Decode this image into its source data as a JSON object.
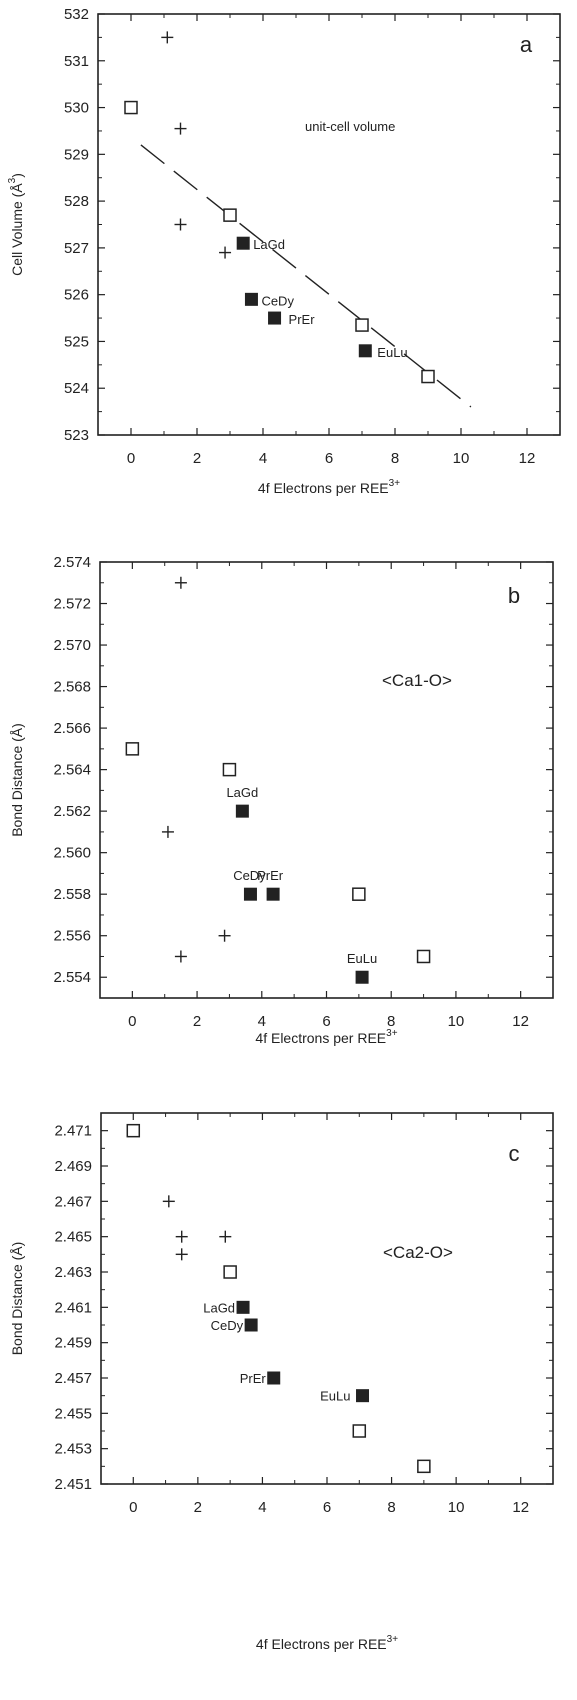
{
  "chart_data": [
    {
      "type": "scatter",
      "panel_label": "a",
      "annotation": "unit-cell volume",
      "xlabel": "4f Electrons per REE",
      "xlabel_sup": "3+",
      "ylabel": "Cell Volume (Å",
      "ylabel_sup": "3",
      "ylabel_end": ")",
      "xlim": [
        -1,
        13
      ],
      "ylim": [
        523,
        532
      ],
      "xticks": [
        0,
        2,
        4,
        6,
        8,
        10,
        12
      ],
      "yticks": [
        523,
        524,
        525,
        526,
        527,
        528,
        529,
        530,
        531,
        532
      ],
      "ytick_labels": [
        "523",
        "524",
        "525",
        "526",
        "527",
        "528",
        "529",
        "530",
        "531",
        "532"
      ],
      "series": [
        {
          "marker": "plus",
          "points": [
            [
              1.1,
              531.5
            ],
            [
              1.5,
              529.55
            ],
            [
              1.5,
              527.5
            ],
            [
              2.85,
              526.9
            ]
          ]
        },
        {
          "marker": "open-square",
          "points": [
            [
              0,
              530.0
            ],
            [
              3.0,
              527.7
            ],
            [
              7.0,
              525.35
            ],
            [
              9.0,
              524.25
            ]
          ]
        },
        {
          "marker": "filled-square",
          "points": [
            [
              3.4,
              527.1
            ],
            [
              3.65,
              525.9
            ],
            [
              4.35,
              525.5
            ],
            [
              7.1,
              524.8
            ]
          ],
          "labels": [
            "LaGd",
            "CeDy",
            "PrEr",
            "EuLu"
          ]
        }
      ],
      "trend_line": {
        "style": "dashed",
        "points": [
          [
            0.3,
            529.2
          ],
          [
            10.3,
            523.6
          ]
        ]
      }
    },
    {
      "type": "scatter",
      "panel_label": "b",
      "annotation": "<Ca1-O>",
      "xlabel": "4f Electrons per REE",
      "xlabel_sup": "3+",
      "ylabel": "Bond Distance (Å)",
      "xlim": [
        -1,
        13
      ],
      "ylim": [
        2.553,
        2.574
      ],
      "xticks": [
        0,
        2,
        4,
        6,
        8,
        10,
        12
      ],
      "yticks": [
        2.554,
        2.556,
        2.558,
        2.56,
        2.562,
        2.564,
        2.566,
        2.568,
        2.57,
        2.572,
        2.574
      ],
      "ytick_labels": [
        "2.554",
        "2.556",
        "2.558",
        "2.560",
        "2.562",
        "2.564",
        "2.566",
        "2.568",
        "2.570",
        "2.572",
        "2.574"
      ],
      "series": [
        {
          "marker": "plus",
          "points": [
            [
              1.5,
              2.573
            ],
            [
              1.1,
              2.561
            ],
            [
              1.5,
              2.555
            ],
            [
              2.85,
              2.556
            ]
          ]
        },
        {
          "marker": "open-square",
          "points": [
            [
              0,
              2.565
            ],
            [
              3.0,
              2.564
            ],
            [
              7.0,
              2.558
            ],
            [
              9.0,
              2.555
            ]
          ]
        },
        {
          "marker": "filled-square",
          "points": [
            [
              3.4,
              2.562
            ],
            [
              3.65,
              2.558
            ],
            [
              4.35,
              2.558
            ],
            [
              7.1,
              2.554
            ]
          ],
          "labels": [
            "LaGd",
            "CeDy",
            "PrEr",
            "EuLu"
          ]
        }
      ]
    },
    {
      "type": "scatter",
      "panel_label": "c",
      "annotation": "<Ca2-O>",
      "xlabel": "4f Electrons per REE",
      "xlabel_sup": "3+",
      "ylabel": "Bond Distance (Å)",
      "xlim": [
        -1,
        13
      ],
      "ylim": [
        2.451,
        2.472
      ],
      "xticks": [
        0,
        2,
        4,
        6,
        8,
        10,
        12
      ],
      "yticks": [
        2.451,
        2.453,
        2.455,
        2.457,
        2.459,
        2.461,
        2.463,
        2.465,
        2.467,
        2.469,
        2.471
      ],
      "ytick_labels": [
        "2.451",
        "2.453",
        "2.455",
        "2.457",
        "2.459",
        "2.461",
        "2.463",
        "2.465",
        "2.467",
        "2.469",
        "2.471"
      ],
      "series": [
        {
          "marker": "plus",
          "points": [
            [
              1.1,
              2.467
            ],
            [
              1.5,
              2.465
            ],
            [
              1.5,
              2.464
            ],
            [
              2.85,
              2.465
            ]
          ]
        },
        {
          "marker": "open-square",
          "points": [
            [
              0,
              2.471
            ],
            [
              3.0,
              2.463
            ],
            [
              7.0,
              2.454
            ],
            [
              9.0,
              2.452
            ]
          ]
        },
        {
          "marker": "filled-square",
          "points": [
            [
              3.4,
              2.461
            ],
            [
              3.65,
              2.46
            ],
            [
              4.35,
              2.457
            ],
            [
              7.1,
              2.456
            ]
          ],
          "labels": [
            "LaGd",
            "CeDy",
            "PrEr",
            "EuLu"
          ]
        }
      ]
    }
  ]
}
